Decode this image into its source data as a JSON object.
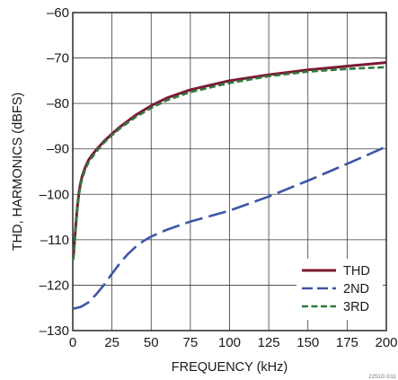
{
  "chart_data": {
    "type": "line",
    "title": "",
    "xlabel": "FREQUENCY (kHz)",
    "ylabel": "THD, HARMONICS (dBFS)",
    "xlim": [
      0,
      200
    ],
    "ylim": [
      -130,
      -60
    ],
    "x_ticks": [
      0,
      25,
      50,
      75,
      100,
      125,
      150,
      175,
      200
    ],
    "y_ticks": [
      -60,
      -70,
      -80,
      -90,
      -100,
      -110,
      -120,
      -130
    ],
    "x_tick_labels": [
      "0",
      "25",
      "50",
      "75",
      "100",
      "125",
      "150",
      "175",
      "200"
    ],
    "y_tick_labels": [
      "–60",
      "–70",
      "–80",
      "–90",
      "–100",
      "–110",
      "–120",
      "–130"
    ],
    "grid": true,
    "legend_position": "bottom-right",
    "series": [
      {
        "name": "THD",
        "color": "#7b1a33",
        "style": "solid",
        "x": [
          0.3,
          1,
          2,
          3,
          4,
          5,
          6,
          8,
          10,
          12,
          15,
          20,
          25,
          30,
          40,
          50,
          60,
          75,
          100,
          125,
          150,
          175,
          200
        ],
        "y": [
          -114,
          -111,
          -106.5,
          -102.5,
          -99.5,
          -97.5,
          -96,
          -94,
          -92.5,
          -91.5,
          -90.2,
          -88.3,
          -86.7,
          -85.2,
          -82.6,
          -80.5,
          -78.8,
          -77,
          -75,
          -73.7,
          -72.6,
          -71.8,
          -71
        ]
      },
      {
        "name": "2ND",
        "color": "#3d56a6",
        "style": "dashed",
        "x": [
          0,
          5,
          10,
          15,
          20,
          25,
          30,
          35,
          40,
          45,
          50,
          60,
          75,
          100,
          125,
          150,
          175,
          200
        ],
        "y": [
          -125.2,
          -124.8,
          -123.8,
          -122,
          -119.9,
          -117.5,
          -115.2,
          -113.2,
          -111.6,
          -110.3,
          -109.3,
          -107.8,
          -106,
          -103.6,
          -100.5,
          -97,
          -93.3,
          -89.5
        ]
      },
      {
        "name": "3RD",
        "color": "#2e7a3c",
        "style": "dashed",
        "x": [
          0.3,
          1,
          2,
          3,
          4,
          5,
          6,
          8,
          10,
          12,
          15,
          20,
          25,
          30,
          40,
          50,
          60,
          75,
          100,
          125,
          150,
          175,
          200
        ],
        "y": [
          -114.5,
          -111.5,
          -107,
          -103,
          -100,
          -98,
          -96.5,
          -94.5,
          -93,
          -92,
          -90.6,
          -88.6,
          -87,
          -85.5,
          -83,
          -81,
          -79.3,
          -77.5,
          -75.5,
          -74,
          -73,
          -72.4,
          -72
        ]
      }
    ],
    "footnote": "2251G G11"
  }
}
